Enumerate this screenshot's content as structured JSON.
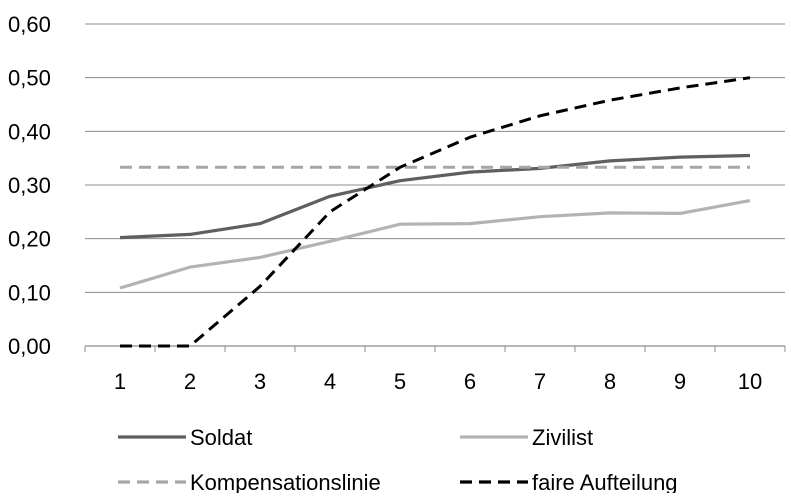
{
  "chart_data": {
    "type": "line",
    "title": "",
    "xlabel": "",
    "ylabel": "",
    "categories": [
      "1",
      "2",
      "3",
      "4",
      "5",
      "6",
      "7",
      "8",
      "9",
      "10"
    ],
    "ylim": [
      0,
      0.6
    ],
    "yticks": [
      0,
      0.1,
      0.2,
      0.3,
      0.4,
      0.5,
      0.6
    ],
    "ytick_labels": [
      "0,00",
      "0,10",
      "0,20",
      "0,30",
      "0,40",
      "0,50",
      "0,60"
    ],
    "grid": true,
    "legend_position": "bottom",
    "series": [
      {
        "name": "Soldat",
        "color": "#5f5f5f",
        "dash": "solid",
        "values": [
          0.202,
          0.208,
          0.228,
          0.279,
          0.308,
          0.324,
          0.331,
          0.345,
          0.352,
          0.355
        ]
      },
      {
        "name": "Zivilist",
        "color": "#b3b3b3",
        "dash": "solid",
        "values": [
          0.108,
          0.147,
          0.165,
          0.195,
          0.227,
          0.228,
          0.241,
          0.248,
          0.247,
          0.271
        ]
      },
      {
        "name": "Kompensationslinie",
        "color": "#a6a6a6",
        "dash": "dashed",
        "values": [
          0.333,
          0.333,
          0.333,
          0.333,
          0.333,
          0.333,
          0.333,
          0.333,
          0.333,
          0.333
        ]
      },
      {
        "name": "faire Aufteilung",
        "color": "#000000",
        "dash": "dashed",
        "values": [
          0.0,
          0.0,
          0.111,
          0.25,
          0.333,
          0.389,
          0.429,
          0.458,
          0.481,
          0.5
        ]
      }
    ]
  }
}
